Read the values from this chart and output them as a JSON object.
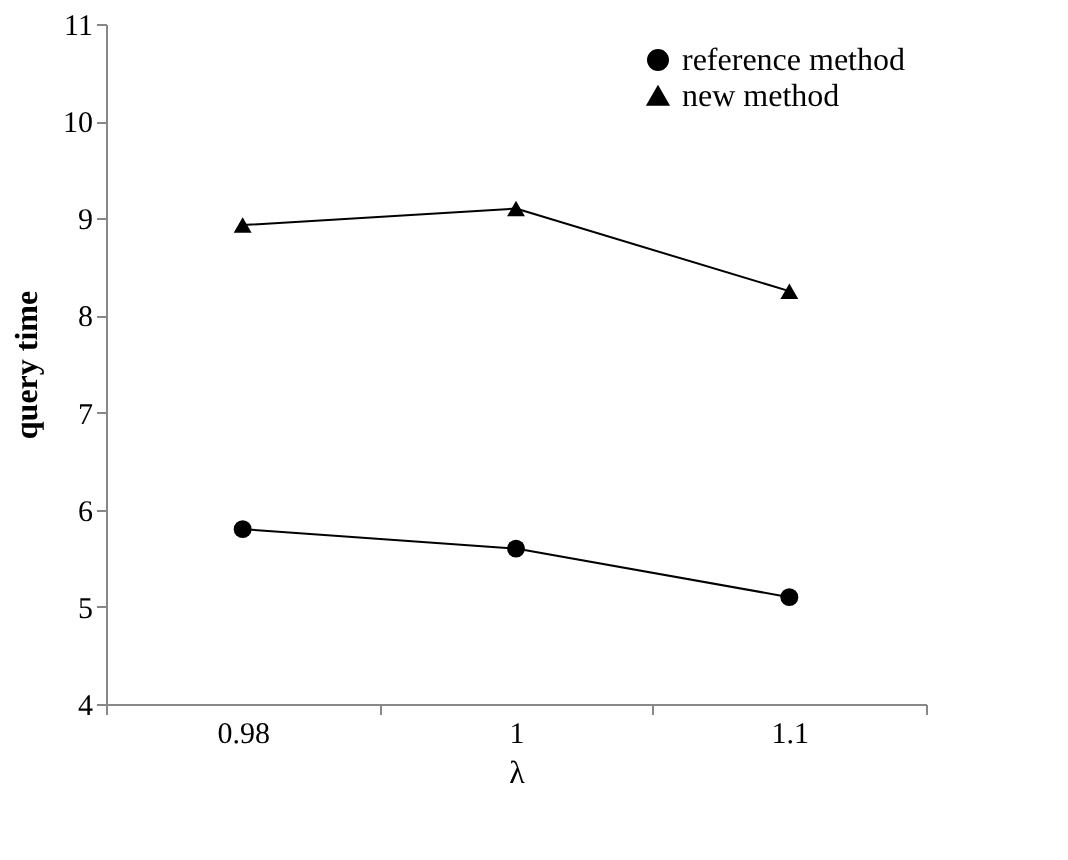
{
  "chart_data": {
    "type": "line",
    "xlabel": "λ",
    "ylabel": "query time",
    "categories": [
      "0.98",
      "1",
      "1.1"
    ],
    "series": [
      {
        "name": "reference method",
        "color": "#000000",
        "marker": "circle",
        "values": [
          5.8,
          5.6,
          5.1
        ]
      },
      {
        "name": "new method",
        "color": "#000000",
        "marker": "triangle",
        "values": [
          8.93,
          9.1,
          8.25
        ]
      }
    ],
    "ylim": [
      4,
      11
    ],
    "yticks": [
      4,
      5,
      6,
      7,
      8,
      9,
      10,
      11
    ],
    "grid": false,
    "legend": "top right",
    "line_style": "solid"
  }
}
